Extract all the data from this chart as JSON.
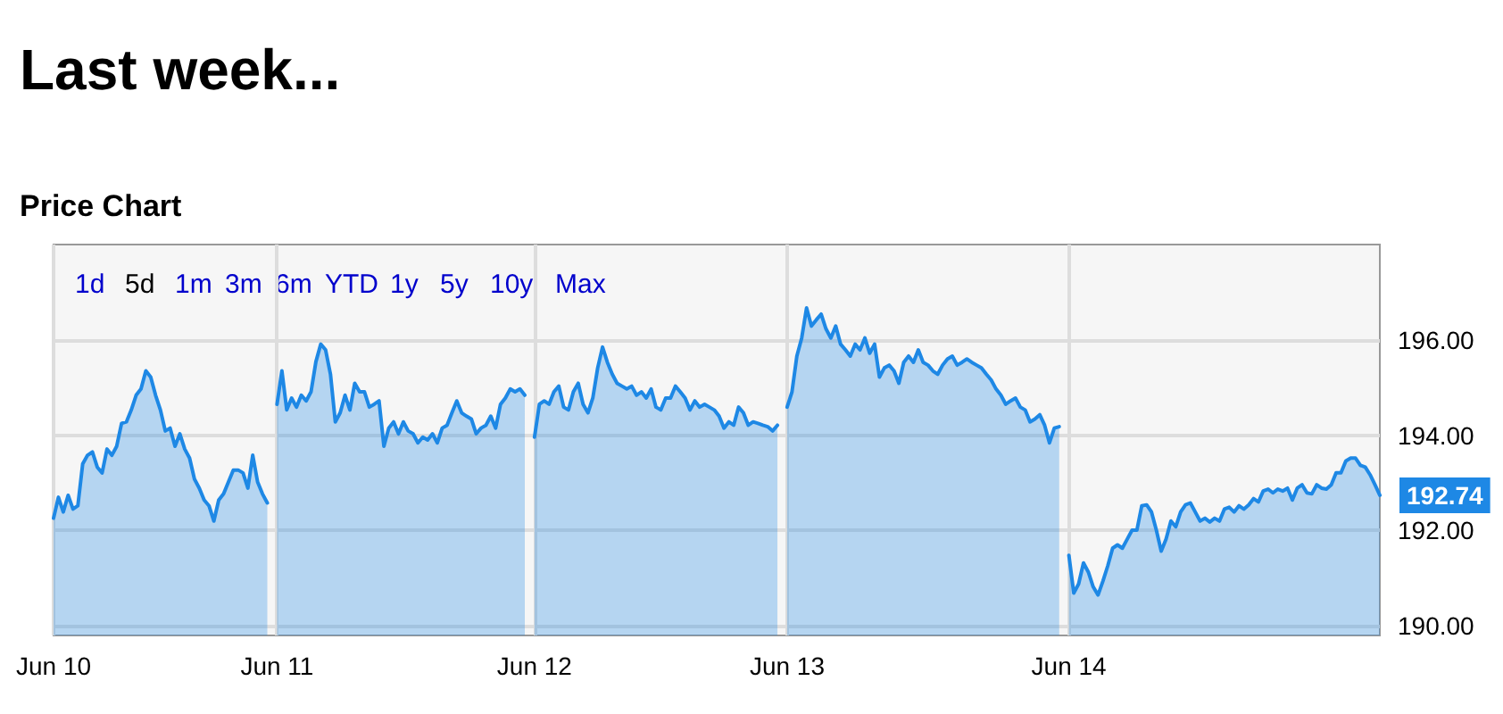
{
  "chart_data": {
    "type": "area",
    "title": "Last week...",
    "subtitle": "Price Chart",
    "categories": [
      "Jun 10",
      null,
      null,
      null,
      null,
      null,
      null,
      null,
      null,
      null,
      null,
      null,
      null,
      null,
      null,
      null,
      null,
      null,
      null,
      null,
      null,
      null,
      null,
      null,
      null,
      null,
      null,
      null,
      null,
      null,
      null,
      null,
      null,
      null,
      null,
      null,
      null,
      null,
      null,
      null,
      null,
      null,
      null,
      null,
      null,
      null,
      "Jun 11",
      null,
      null,
      null,
      null,
      null,
      null,
      null,
      null,
      null,
      null,
      null,
      null,
      null,
      null,
      null,
      null,
      null,
      null,
      null,
      null,
      null,
      null,
      null,
      null,
      null,
      null,
      null,
      null,
      null,
      null,
      null,
      null,
      null,
      null,
      null,
      null,
      null,
      null,
      null,
      null,
      null,
      null,
      null,
      null,
      null,
      null,
      null,
      null,
      null,
      null,
      null,
      null,
      "Jun 12",
      null,
      null,
      null,
      null,
      null,
      null,
      null,
      null,
      null,
      null,
      null,
      null,
      null,
      null,
      null,
      null,
      null,
      null,
      null,
      null,
      null,
      null,
      null,
      null,
      null,
      null,
      null,
      null,
      null,
      null,
      null,
      null,
      null,
      null,
      null,
      null,
      null,
      null,
      null,
      null,
      null,
      null,
      null,
      null,
      null,
      null,
      null,
      null,
      null,
      null,
      null,
      "Jun 13",
      null,
      null,
      null,
      null,
      null,
      null,
      null,
      null,
      null,
      null,
      null,
      null,
      null,
      null,
      null,
      null,
      null,
      null,
      null,
      null,
      null,
      null,
      null,
      null,
      null,
      null,
      null,
      null,
      null,
      null,
      null,
      null,
      null,
      null,
      null,
      null,
      null,
      null,
      null,
      null,
      null,
      null,
      null,
      null,
      null,
      null,
      null,
      null,
      null,
      null,
      null,
      null,
      null,
      null,
      null,
      null,
      null,
      "Jun 14",
      null,
      null,
      null,
      null,
      null,
      null,
      null,
      null,
      null,
      null,
      null,
      null,
      null,
      null,
      null,
      null,
      null,
      null,
      null,
      null,
      null,
      null,
      null,
      null,
      null,
      null,
      null,
      null,
      null,
      null,
      null,
      null,
      null,
      null,
      null,
      null,
      null,
      null,
      null,
      null,
      null,
      null,
      null,
      null,
      null,
      null,
      null,
      null,
      null,
      null,
      null,
      null,
      null,
      null,
      null,
      null,
      null,
      null,
      null,
      null,
      null,
      null,
      null,
      null
    ],
    "series": [
      {
        "color": "#1e88e5",
        "values": [
          192.26,
          192.7,
          192.39,
          192.74,
          192.45,
          192.52,
          193.4,
          193.58,
          193.65,
          193.33,
          193.21,
          193.71,
          193.58,
          193.77,
          194.25,
          194.28,
          194.53,
          194.84,
          194.97,
          195.35,
          195.22,
          194.84,
          194.53,
          194.09,
          194.15,
          193.77,
          194.03,
          193.71,
          193.52,
          193.08,
          192.89,
          192.64,
          192.52,
          192.2,
          192.64,
          192.77,
          193.02,
          193.27,
          193.27,
          193.21,
          192.89,
          193.58,
          193.02,
          192.77,
          192.58,
          null,
          194.65,
          195.35,
          194.53,
          194.78,
          194.59,
          194.84,
          194.72,
          194.91,
          195.54,
          195.91,
          195.79,
          195.28,
          194.28,
          194.47,
          194.84,
          194.53,
          195.09,
          194.91,
          194.91,
          194.59,
          194.65,
          194.72,
          193.77,
          194.15,
          194.28,
          194.03,
          194.28,
          194.09,
          194.03,
          193.84,
          193.96,
          193.9,
          194.03,
          193.84,
          194.15,
          194.21,
          194.47,
          194.72,
          194.47,
          194.4,
          194.34,
          194.03,
          194.15,
          194.21,
          194.4,
          194.15,
          194.65,
          194.78,
          194.97,
          194.91,
          194.97,
          194.84,
          null,
          193.96,
          194.65,
          194.72,
          194.65,
          194.91,
          195.03,
          194.59,
          194.53,
          194.91,
          195.09,
          194.65,
          194.47,
          194.78,
          195.41,
          195.85,
          195.53,
          195.28,
          195.09,
          195.03,
          194.97,
          195.03,
          194.84,
          194.91,
          194.78,
          194.97,
          194.59,
          194.53,
          194.78,
          194.78,
          195.03,
          194.91,
          194.78,
          194.53,
          194.72,
          194.59,
          194.65,
          194.59,
          194.53,
          194.4,
          194.15,
          194.28,
          194.21,
          194.59,
          194.47,
          194.21,
          194.28,
          194.25,
          194.21,
          194.18,
          194.09,
          194.21,
          null,
          194.59,
          194.91,
          195.66,
          196.04,
          196.67,
          196.29,
          196.42,
          196.54,
          196.23,
          196.04,
          196.29,
          195.91,
          195.79,
          195.66,
          195.91,
          195.79,
          196.04,
          195.72,
          195.91,
          195.22,
          195.41,
          195.47,
          195.35,
          195.09,
          195.53,
          195.66,
          195.53,
          195.79,
          195.53,
          195.47,
          195.35,
          195.28,
          195.47,
          195.6,
          195.66,
          195.47,
          195.53,
          195.6,
          195.53,
          195.47,
          195.41,
          195.28,
          195.16,
          194.97,
          194.84,
          194.65,
          194.72,
          194.78,
          194.59,
          194.53,
          194.28,
          194.34,
          194.43,
          194.21,
          193.84,
          194.15,
          194.18,
          null,
          191.48,
          190.69,
          190.88,
          191.32,
          191.13,
          190.82,
          190.65,
          190.94,
          191.26,
          191.63,
          191.7,
          191.63,
          191.82,
          192.01,
          192.01,
          192.52,
          192.54,
          192.39,
          192.01,
          191.57,
          191.82,
          192.2,
          192.08,
          192.39,
          192.54,
          192.58,
          192.39,
          192.2,
          192.26,
          192.18,
          192.26,
          192.2,
          192.45,
          192.49,
          192.39,
          192.52,
          192.45,
          192.54,
          192.67,
          192.6,
          192.83,
          192.87,
          192.79,
          192.87,
          192.83,
          192.89,
          192.64,
          192.89,
          192.96,
          192.79,
          192.77,
          192.96,
          192.89,
          192.87,
          192.96,
          193.21,
          193.21,
          193.46,
          193.52,
          193.52,
          193.37,
          193.33,
          193.17,
          192.96,
          192.74
        ]
      }
    ],
    "ylim": [
      189.8,
      198
    ],
    "yticks": [
      {
        "value": 190,
        "label": "190.00"
      },
      {
        "value": 192,
        "label": "192.00"
      },
      {
        "value": 194,
        "label": "194.00"
      },
      {
        "value": 196,
        "label": "196.00"
      }
    ],
    "grid": true,
    "marker": "none",
    "line_style": "solid",
    "annotations": [
      "1d",
      "5d",
      "1m",
      "3m",
      "6m",
      "YTD",
      "1y",
      "5y",
      "10y",
      "Max",
      "192.74"
    ]
  }
}
